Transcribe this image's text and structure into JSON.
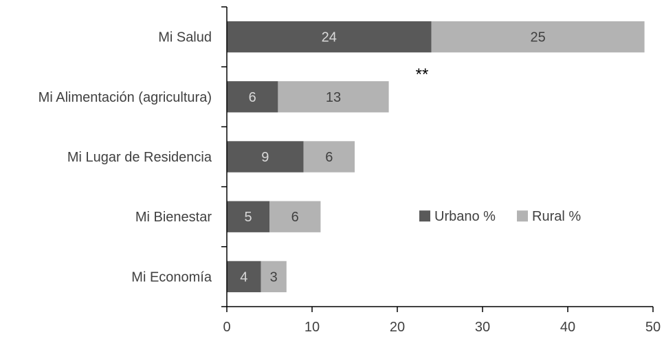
{
  "chart_data": {
    "type": "bar",
    "orientation": "horizontal",
    "stacked": true,
    "categories": [
      "Mi Salud",
      "Mi Alimentación (agricultura)",
      "Mi Lugar de Residencia",
      "Mi Bienestar",
      "Mi Economía"
    ],
    "series": [
      {
        "name": "Urbano %",
        "values": [
          24,
          6,
          9,
          5,
          4
        ],
        "color": "#595959"
      },
      {
        "name": "Rural %",
        "values": [
          25,
          13,
          6,
          6,
          3
        ],
        "color": "#b3b3b3"
      }
    ],
    "xlim": [
      0,
      50
    ],
    "xticks": [
      0,
      10,
      20,
      30,
      40,
      50
    ],
    "annotation": {
      "text": "**",
      "category": "Mi Alimentación (agricultura)"
    },
    "legend_position": "right",
    "grid": false,
    "title": "",
    "xlabel": "",
    "ylabel": ""
  }
}
